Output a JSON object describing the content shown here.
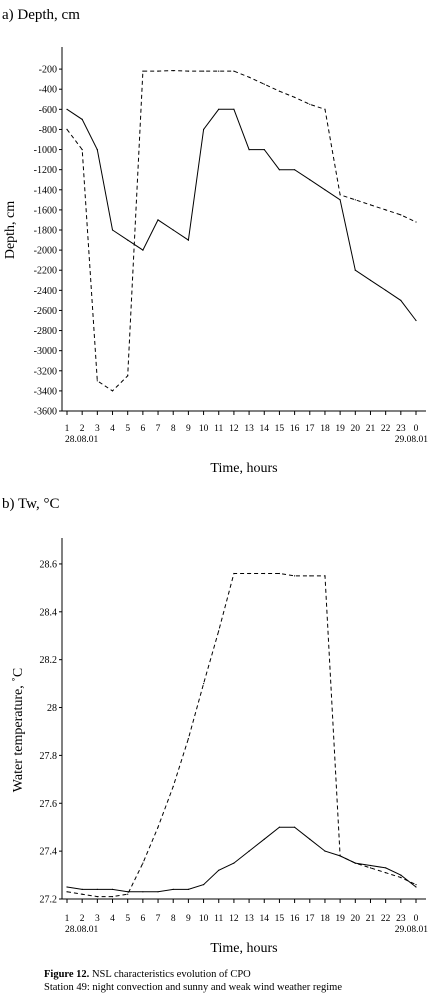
{
  "chart_data": [
    {
      "type": "line",
      "panel_title": "a) Depth, cm",
      "xlabel": "Time, hours",
      "ylabel": "Depth, cm",
      "x_ticks": [
        "1",
        "2",
        "3",
        "4",
        "5",
        "6",
        "7",
        "8",
        "9",
        "10",
        "11",
        "12",
        "13",
        "14",
        "15",
        "16",
        "17",
        "18",
        "19",
        "20",
        "21",
        "22",
        "23",
        "0"
      ],
      "x_start_date": "28.08.01",
      "x_end_date": "29.08.01",
      "y_ticks": [
        -200,
        -400,
        -600,
        -800,
        -1000,
        -1200,
        -1400,
        -1600,
        -1800,
        -2000,
        -2200,
        -2400,
        -2600,
        -2800,
        -3000,
        -3200,
        -3400,
        -3600
      ],
      "ylim": [
        -3600,
        0
      ],
      "series": [
        {
          "style": "solid",
          "x": [
            1,
            2,
            3,
            4,
            5,
            6,
            7,
            8,
            9,
            10,
            11,
            12,
            13,
            14,
            15,
            16,
            17,
            18,
            19,
            20,
            21,
            22,
            23,
            24
          ],
          "y": [
            -600,
            -700,
            -1000,
            -1800,
            -1900,
            -2000,
            -1700,
            -1800,
            -1900,
            -800,
            -600,
            -600,
            -1000,
            -1000,
            -1200,
            -1200,
            -1300,
            -1400,
            -1500,
            -2200,
            -2300,
            -2400,
            -2500,
            -2700
          ]
        },
        {
          "style": "dashed",
          "x": [
            1,
            2,
            3,
            4,
            5,
            6,
            7,
            8,
            9,
            10,
            11,
            12,
            13,
            14,
            15,
            16,
            17,
            18,
            19,
            20,
            21,
            22,
            23,
            24
          ],
          "y": [
            -800,
            -1000,
            -3300,
            -3400,
            -3250,
            -220,
            -220,
            -215,
            -220,
            -220,
            -220,
            -220,
            -280,
            -350,
            -420,
            -480,
            -550,
            -600,
            -1450,
            -1500,
            -1550,
            -1600,
            -1650,
            -1720
          ]
        }
      ]
    },
    {
      "type": "line",
      "panel_title": "b) Tw, °C",
      "xlabel": "Time, hours",
      "ylabel": "Water temperature, ˚C",
      "x_ticks": [
        "1",
        "2",
        "3",
        "4",
        "5",
        "6",
        "7",
        "8",
        "9",
        "10",
        "11",
        "12",
        "13",
        "14",
        "15",
        "16",
        "17",
        "18",
        "19",
        "20",
        "21",
        "22",
        "23",
        "0"
      ],
      "x_start_date": "28.08.01",
      "x_end_date": "29.08.01",
      "y_ticks": [
        "27.2",
        "27.4",
        "27.6",
        "27.8",
        "28",
        "28.2",
        "28.4",
        "28.6"
      ],
      "ylim": [
        27.2,
        28.7
      ],
      "series": [
        {
          "style": "solid",
          "x": [
            1,
            2,
            3,
            4,
            5,
            6,
            7,
            8,
            9,
            10,
            11,
            12,
            13,
            14,
            15,
            16,
            17,
            18,
            19,
            20,
            21,
            22,
            23,
            24
          ],
          "y": [
            27.25,
            27.24,
            27.24,
            27.24,
            27.23,
            27.23,
            27.23,
            27.24,
            27.24,
            27.26,
            27.32,
            27.35,
            27.4,
            27.45,
            27.5,
            27.5,
            27.45,
            27.4,
            27.38,
            27.35,
            27.34,
            27.33,
            27.3,
            27.25
          ]
        },
        {
          "style": "dashed",
          "x": [
            1,
            2,
            3,
            4,
            5,
            6,
            7,
            8,
            9,
            10,
            11,
            12,
            13,
            14,
            15,
            16,
            17,
            18,
            19,
            20,
            21,
            22,
            23,
            24
          ],
          "y": [
            27.23,
            27.22,
            27.21,
            27.21,
            27.22,
            27.35,
            27.5,
            27.67,
            27.87,
            28.1,
            28.32,
            28.56,
            28.56,
            28.56,
            28.56,
            28.55,
            28.55,
            28.55,
            27.38,
            27.35,
            27.33,
            27.31,
            27.29,
            27.26
          ]
        }
      ]
    }
  ],
  "caption": {
    "label": "Figure 12.",
    "title": "NSL characteristics evolution of CPO",
    "subtitle": "Station 49: night convection and sunny and weak wind weather regime"
  }
}
